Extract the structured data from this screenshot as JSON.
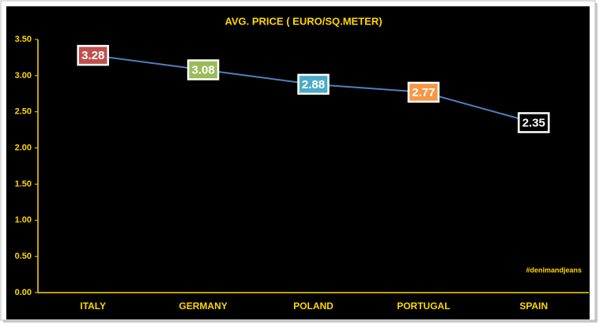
{
  "chart_data": {
    "type": "line",
    "title": "AVG. PRICE ( EURO/SQ.METER)",
    "categories": [
      "ITALY",
      "GERMANY",
      "POLAND",
      "PORTUGAL",
      "SPAIN"
    ],
    "series": [
      {
        "color": "#4f81bd",
        "values": [
          3.28,
          3.08,
          2.88,
          2.77,
          2.35
        ]
      }
    ],
    "label_colors": [
      "#c0504d",
      "#9bbb59",
      "#4bacc6",
      "#f79646",
      "#000000"
    ],
    "ylim": [
      0,
      3.5
    ],
    "yticks": [
      {
        "value": 0,
        "label": "0.00"
      },
      {
        "value": 0.5,
        "label": "0.50"
      },
      {
        "value": 1,
        "label": "1.00"
      },
      {
        "value": 1.5,
        "label": "1.50"
      },
      {
        "value": 2,
        "label": "2.00"
      },
      {
        "value": 2.5,
        "label": "2.50"
      },
      {
        "value": 3,
        "label": "3.00"
      },
      {
        "value": 3.5,
        "label": "3.50"
      }
    ],
    "annotation": "#denimandjeans"
  }
}
